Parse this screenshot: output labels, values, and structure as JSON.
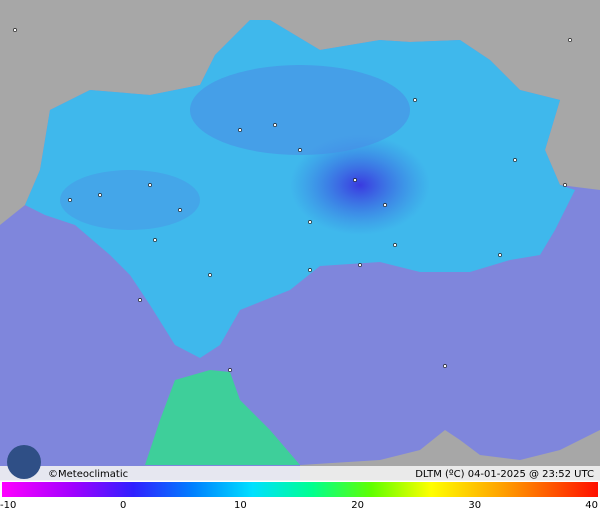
{
  "map": {
    "credit": "©Meteoclimatic",
    "caption": "DLTM (ºC) 04-01-2025 @ 23:52 UTC",
    "scale_ticks": [
      -10,
      0,
      10,
      20,
      30,
      40
    ]
  }
}
